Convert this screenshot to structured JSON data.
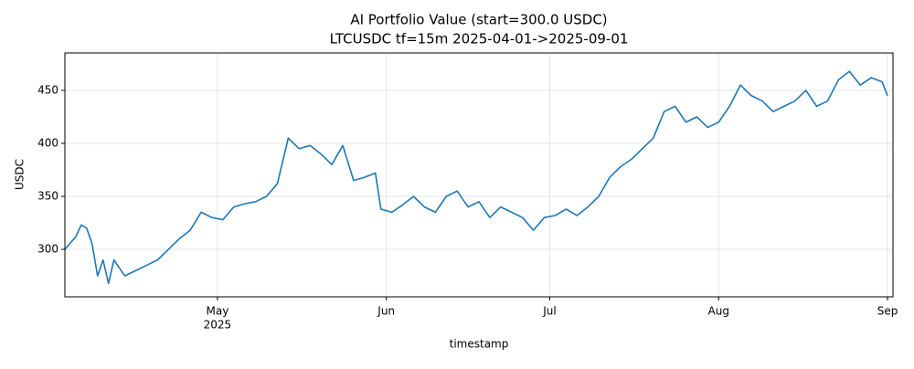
{
  "chart_data": {
    "type": "line",
    "title": "AI Portfolio Value (start=300.0 USDC)",
    "subtitle": "LTCUSDC tf=15m 2025-04-01->2025-09-01",
    "x_label": "timestamp",
    "y_label": "USDC",
    "color": "#1f77b4",
    "grid": true,
    "xlim": [
      "2025-04-03",
      "2025-09-02"
    ],
    "xticks": [
      {
        "value": "2025-05-01",
        "label": "May",
        "sublabel": "2025"
      },
      {
        "value": "2025-06-01",
        "label": "Jun"
      },
      {
        "value": "2025-07-01",
        "label": "Jul"
      },
      {
        "value": "2025-08-01",
        "label": "Aug"
      },
      {
        "value": "2025-09-01",
        "label": "Sep"
      }
    ],
    "ylim": [
      255.2,
      485.3
    ],
    "yticks": [
      300,
      350,
      400,
      450
    ],
    "x": [
      "2025-04-03",
      "2025-04-05",
      "2025-04-06",
      "2025-04-07",
      "2025-04-08",
      "2025-04-09",
      "2025-04-10",
      "2025-04-11",
      "2025-04-12",
      "2025-04-14",
      "2025-04-16",
      "2025-04-18",
      "2025-04-20",
      "2025-04-22",
      "2025-04-24",
      "2025-04-26",
      "2025-04-28",
      "2025-04-30",
      "2025-05-02",
      "2025-05-04",
      "2025-05-06",
      "2025-05-08",
      "2025-05-10",
      "2025-05-12",
      "2025-05-14",
      "2025-05-16",
      "2025-05-18",
      "2025-05-20",
      "2025-05-22",
      "2025-05-24",
      "2025-05-26",
      "2025-05-28",
      "2025-05-30",
      "2025-05-31",
      "2025-06-02",
      "2025-06-04",
      "2025-06-06",
      "2025-06-08",
      "2025-06-10",
      "2025-06-12",
      "2025-06-14",
      "2025-06-16",
      "2025-06-18",
      "2025-06-20",
      "2025-06-22",
      "2025-06-24",
      "2025-06-26",
      "2025-06-28",
      "2025-06-30",
      "2025-07-02",
      "2025-07-04",
      "2025-07-06",
      "2025-07-08",
      "2025-07-10",
      "2025-07-12",
      "2025-07-14",
      "2025-07-16",
      "2025-07-18",
      "2025-07-20",
      "2025-07-22",
      "2025-07-24",
      "2025-07-26",
      "2025-07-28",
      "2025-07-30",
      "2025-08-01",
      "2025-08-03",
      "2025-08-05",
      "2025-08-07",
      "2025-08-09",
      "2025-08-11",
      "2025-08-13",
      "2025-08-15",
      "2025-08-17",
      "2025-08-19",
      "2025-08-21",
      "2025-08-23",
      "2025-08-25",
      "2025-08-27",
      "2025-08-29",
      "2025-08-31",
      "2025-09-01"
    ],
    "values": [
      300,
      312,
      323,
      320,
      305,
      275,
      290,
      268,
      290,
      275,
      280,
      285,
      290,
      300,
      310,
      318,
      335,
      330,
      328,
      340,
      343,
      345,
      350,
      362,
      405,
      395,
      398,
      390,
      380,
      398,
      365,
      368,
      372,
      338,
      335,
      342,
      350,
      340,
      335,
      350,
      355,
      340,
      345,
      330,
      340,
      335,
      330,
      318,
      330,
      332,
      338,
      332,
      340,
      350,
      368,
      378,
      385,
      395,
      405,
      430,
      435,
      420,
      425,
      415,
      420,
      435,
      455,
      445,
      440,
      430,
      435,
      440,
      450,
      435,
      440,
      460,
      468,
      455,
      462,
      458,
      445
    ]
  }
}
